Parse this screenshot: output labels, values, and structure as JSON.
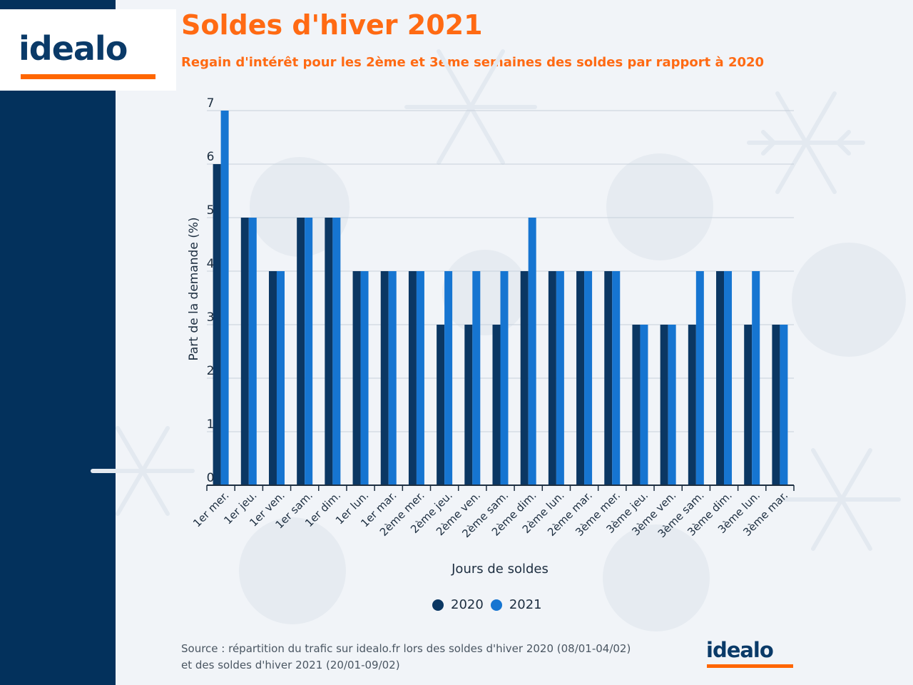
{
  "brand": {
    "logo_text": "idealo",
    "accent": "#ff6600",
    "navy": "#03315c"
  },
  "header": {
    "title": "Soldes d'hiver 2021",
    "subtitle": "Regain d'intérêt pour les 2ème et 3ème semaines des soldes par rapport à 2020"
  },
  "chart_data": {
    "type": "bar",
    "xlabel": "Jours de soldes",
    "ylabel": "Part de la demande (%)",
    "ylim": [
      0,
      7
    ],
    "yticks": [
      0,
      1,
      2,
      3,
      4,
      5,
      6,
      7
    ],
    "grid": true,
    "legend_position": "bottom-center",
    "categories": [
      "1er mer.",
      "1er jeu.",
      "1er ven.",
      "1er sam.",
      "1er dim.",
      "1er lun.",
      "1er mar.",
      "2ème mer.",
      "2ème jeu.",
      "2ème ven.",
      "2ème sam.",
      "2ème dim.",
      "2ème lun.",
      "2ème mar.",
      "3ème mer.",
      "3ème jeu.",
      "3ème ven.",
      "3ème sam.",
      "3ème dim.",
      "3ème lun.",
      "3ème mar."
    ],
    "series": [
      {
        "name": "2020",
        "color": "#0b3763",
        "values": [
          6,
          5,
          4,
          5,
          5,
          4,
          4,
          4,
          3,
          3,
          3,
          4,
          4,
          4,
          4,
          3,
          3,
          3,
          4,
          3,
          3
        ]
      },
      {
        "name": "2021",
        "color": "#1675d1",
        "values": [
          7,
          5,
          4,
          5,
          5,
          4,
          4,
          4,
          4,
          4,
          4,
          5,
          4,
          4,
          4,
          3,
          3,
          4,
          4,
          4,
          3
        ]
      }
    ]
  },
  "legend": {
    "items": [
      "2020",
      "2021"
    ]
  },
  "footer": {
    "source_line1": "Source : répartition du trafic sur idealo.fr lors des soldes d'hiver 2020 (08/01-04/02)",
    "source_line2": "et des soldes d'hiver 2021 (20/01-09/02)"
  }
}
